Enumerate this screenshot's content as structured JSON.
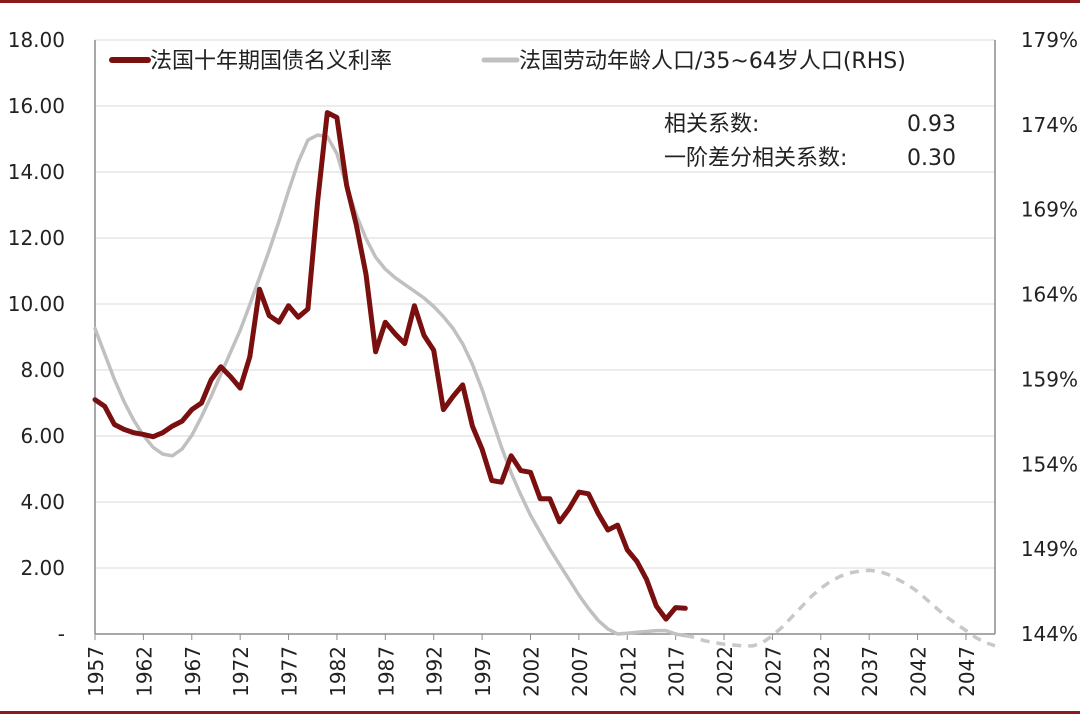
{
  "chart_data": {
    "type": "line",
    "legend": {
      "placement": "top",
      "bond_label": "法国十年期国债名义利率",
      "pop_label": "法国劳动年龄人口/35~64岁人口(RHS)"
    },
    "stats": {
      "corr_label": "相关系数:",
      "corr_value": "0.93",
      "diff_corr_label": "一阶差分相关系数:",
      "diff_corr_value": "0.30"
    },
    "x_ticks": [
      "1957",
      "1962",
      "1967",
      "1972",
      "1977",
      "1982",
      "1987",
      "1992",
      "1997",
      "2002",
      "2007",
      "2012",
      "2017",
      "2022",
      "2027",
      "2032",
      "2037",
      "2042",
      "2047"
    ],
    "x_range": [
      1957,
      2050
    ],
    "y_left": {
      "range": [
        0,
        18
      ],
      "ticks": [
        "-",
        "2.00",
        "4.00",
        "6.00",
        "8.00",
        "10.00",
        "12.00",
        "14.00",
        "16.00",
        "18.00"
      ]
    },
    "y_right": {
      "range": [
        144,
        179
      ],
      "ticks": [
        "144%",
        "149%",
        "154%",
        "159%",
        "164%",
        "169%",
        "174%",
        "179%"
      ]
    },
    "grid": "horizontal",
    "colors": {
      "bond": "#7a0f0f",
      "pop": "#c0c0c0",
      "pop_projection": "#c8c8c8",
      "grid": "#d9d9d9",
      "frame": "#8b1a1a"
    },
    "series": [
      {
        "key": "bond",
        "axis": "left",
        "x": [
          1957,
          1958,
          1959,
          1960,
          1961,
          1962,
          1963,
          1964,
          1965,
          1966,
          1967,
          1968,
          1969,
          1970,
          1971,
          1972,
          1973,
          1974,
          1975,
          1976,
          1977,
          1978,
          1979,
          1980,
          1981,
          1982,
          1983,
          1984,
          1985,
          1986,
          1987,
          1988,
          1989,
          1990,
          1991,
          1992,
          1993,
          1994,
          1995,
          1996,
          1997,
          1998,
          1999,
          2000,
          2001,
          2002,
          2003,
          2004,
          2005,
          2006,
          2007,
          2008,
          2009,
          2010,
          2011,
          2012,
          2013,
          2014,
          2015,
          2016,
          2017,
          2018
        ],
        "y": [
          7.1,
          6.9,
          6.35,
          6.2,
          6.1,
          6.05,
          5.98,
          6.1,
          6.3,
          6.45,
          6.8,
          7.0,
          7.7,
          8.1,
          7.8,
          7.45,
          8.4,
          10.45,
          9.65,
          9.45,
          9.95,
          9.6,
          9.85,
          13.1,
          15.8,
          15.65,
          13.6,
          12.4,
          10.9,
          8.55,
          9.45,
          9.1,
          8.8,
          9.95,
          9.05,
          8.6,
          6.8,
          7.2,
          7.55,
          6.3,
          5.6,
          4.65,
          4.6,
          5.4,
          4.95,
          4.9,
          4.1,
          4.1,
          3.4,
          3.8,
          4.3,
          4.25,
          3.65,
          3.15,
          3.3,
          2.55,
          2.2,
          1.65,
          0.85,
          0.45,
          0.8,
          0.78
        ]
      },
      {
        "key": "pop",
        "axis": "right",
        "x": [
          1957,
          1958,
          1959,
          1960,
          1961,
          1962,
          1963,
          1964,
          1965,
          1966,
          1967,
          1968,
          1969,
          1970,
          1971,
          1972,
          1973,
          1974,
          1975,
          1976,
          1977,
          1978,
          1979,
          1980,
          1981,
          1982,
          1983,
          1984,
          1985,
          1986,
          1987,
          1988,
          1989,
          1990,
          1991,
          1992,
          1993,
          1994,
          1995,
          1996,
          1997,
          1998,
          1999,
          2000,
          2001,
          2002,
          2003,
          2004,
          2005,
          2006,
          2007,
          2008,
          2009,
          2010,
          2011,
          2012,
          2013,
          2014,
          2015,
          2016,
          2017,
          2018
        ],
        "y": [
          162.0,
          160.5,
          159.0,
          157.7,
          156.6,
          155.7,
          155.0,
          154.6,
          154.5,
          154.9,
          155.7,
          156.8,
          158.0,
          159.3,
          160.6,
          161.9,
          163.4,
          165.0,
          166.6,
          168.3,
          170.1,
          171.8,
          173.1,
          173.4,
          173.3,
          172.3,
          170.4,
          168.7,
          167.3,
          166.2,
          165.5,
          165.0,
          164.6,
          164.2,
          163.8,
          163.3,
          162.7,
          162.0,
          161.1,
          159.9,
          158.4,
          156.7,
          155.0,
          153.5,
          152.2,
          151.0,
          150.0,
          149.0,
          148.1,
          147.2,
          146.3,
          145.5,
          144.8,
          144.3,
          144.0,
          144.05,
          144.1,
          144.15,
          144.2,
          144.2,
          144.0,
          143.9
        ]
      },
      {
        "key": "pop_projection",
        "axis": "right",
        "style": "dashed",
        "x": [
          2018,
          2019,
          2020,
          2021,
          2022,
          2023,
          2024,
          2025,
          2026,
          2027,
          2028,
          2029,
          2030,
          2031,
          2032,
          2033,
          2034,
          2035,
          2036,
          2037,
          2038,
          2039,
          2040,
          2041,
          2042,
          2043,
          2044,
          2045,
          2046,
          2047,
          2048,
          2049,
          2050
        ],
        "y": [
          143.9,
          143.8,
          143.6,
          143.5,
          143.4,
          143.35,
          143.3,
          143.3,
          143.5,
          143.9,
          144.4,
          145.0,
          145.6,
          146.2,
          146.7,
          147.1,
          147.4,
          147.6,
          147.7,
          147.75,
          147.7,
          147.5,
          147.2,
          146.9,
          146.5,
          146.0,
          145.5,
          145.0,
          144.6,
          144.2,
          143.8,
          143.5,
          143.3
        ]
      }
    ]
  }
}
